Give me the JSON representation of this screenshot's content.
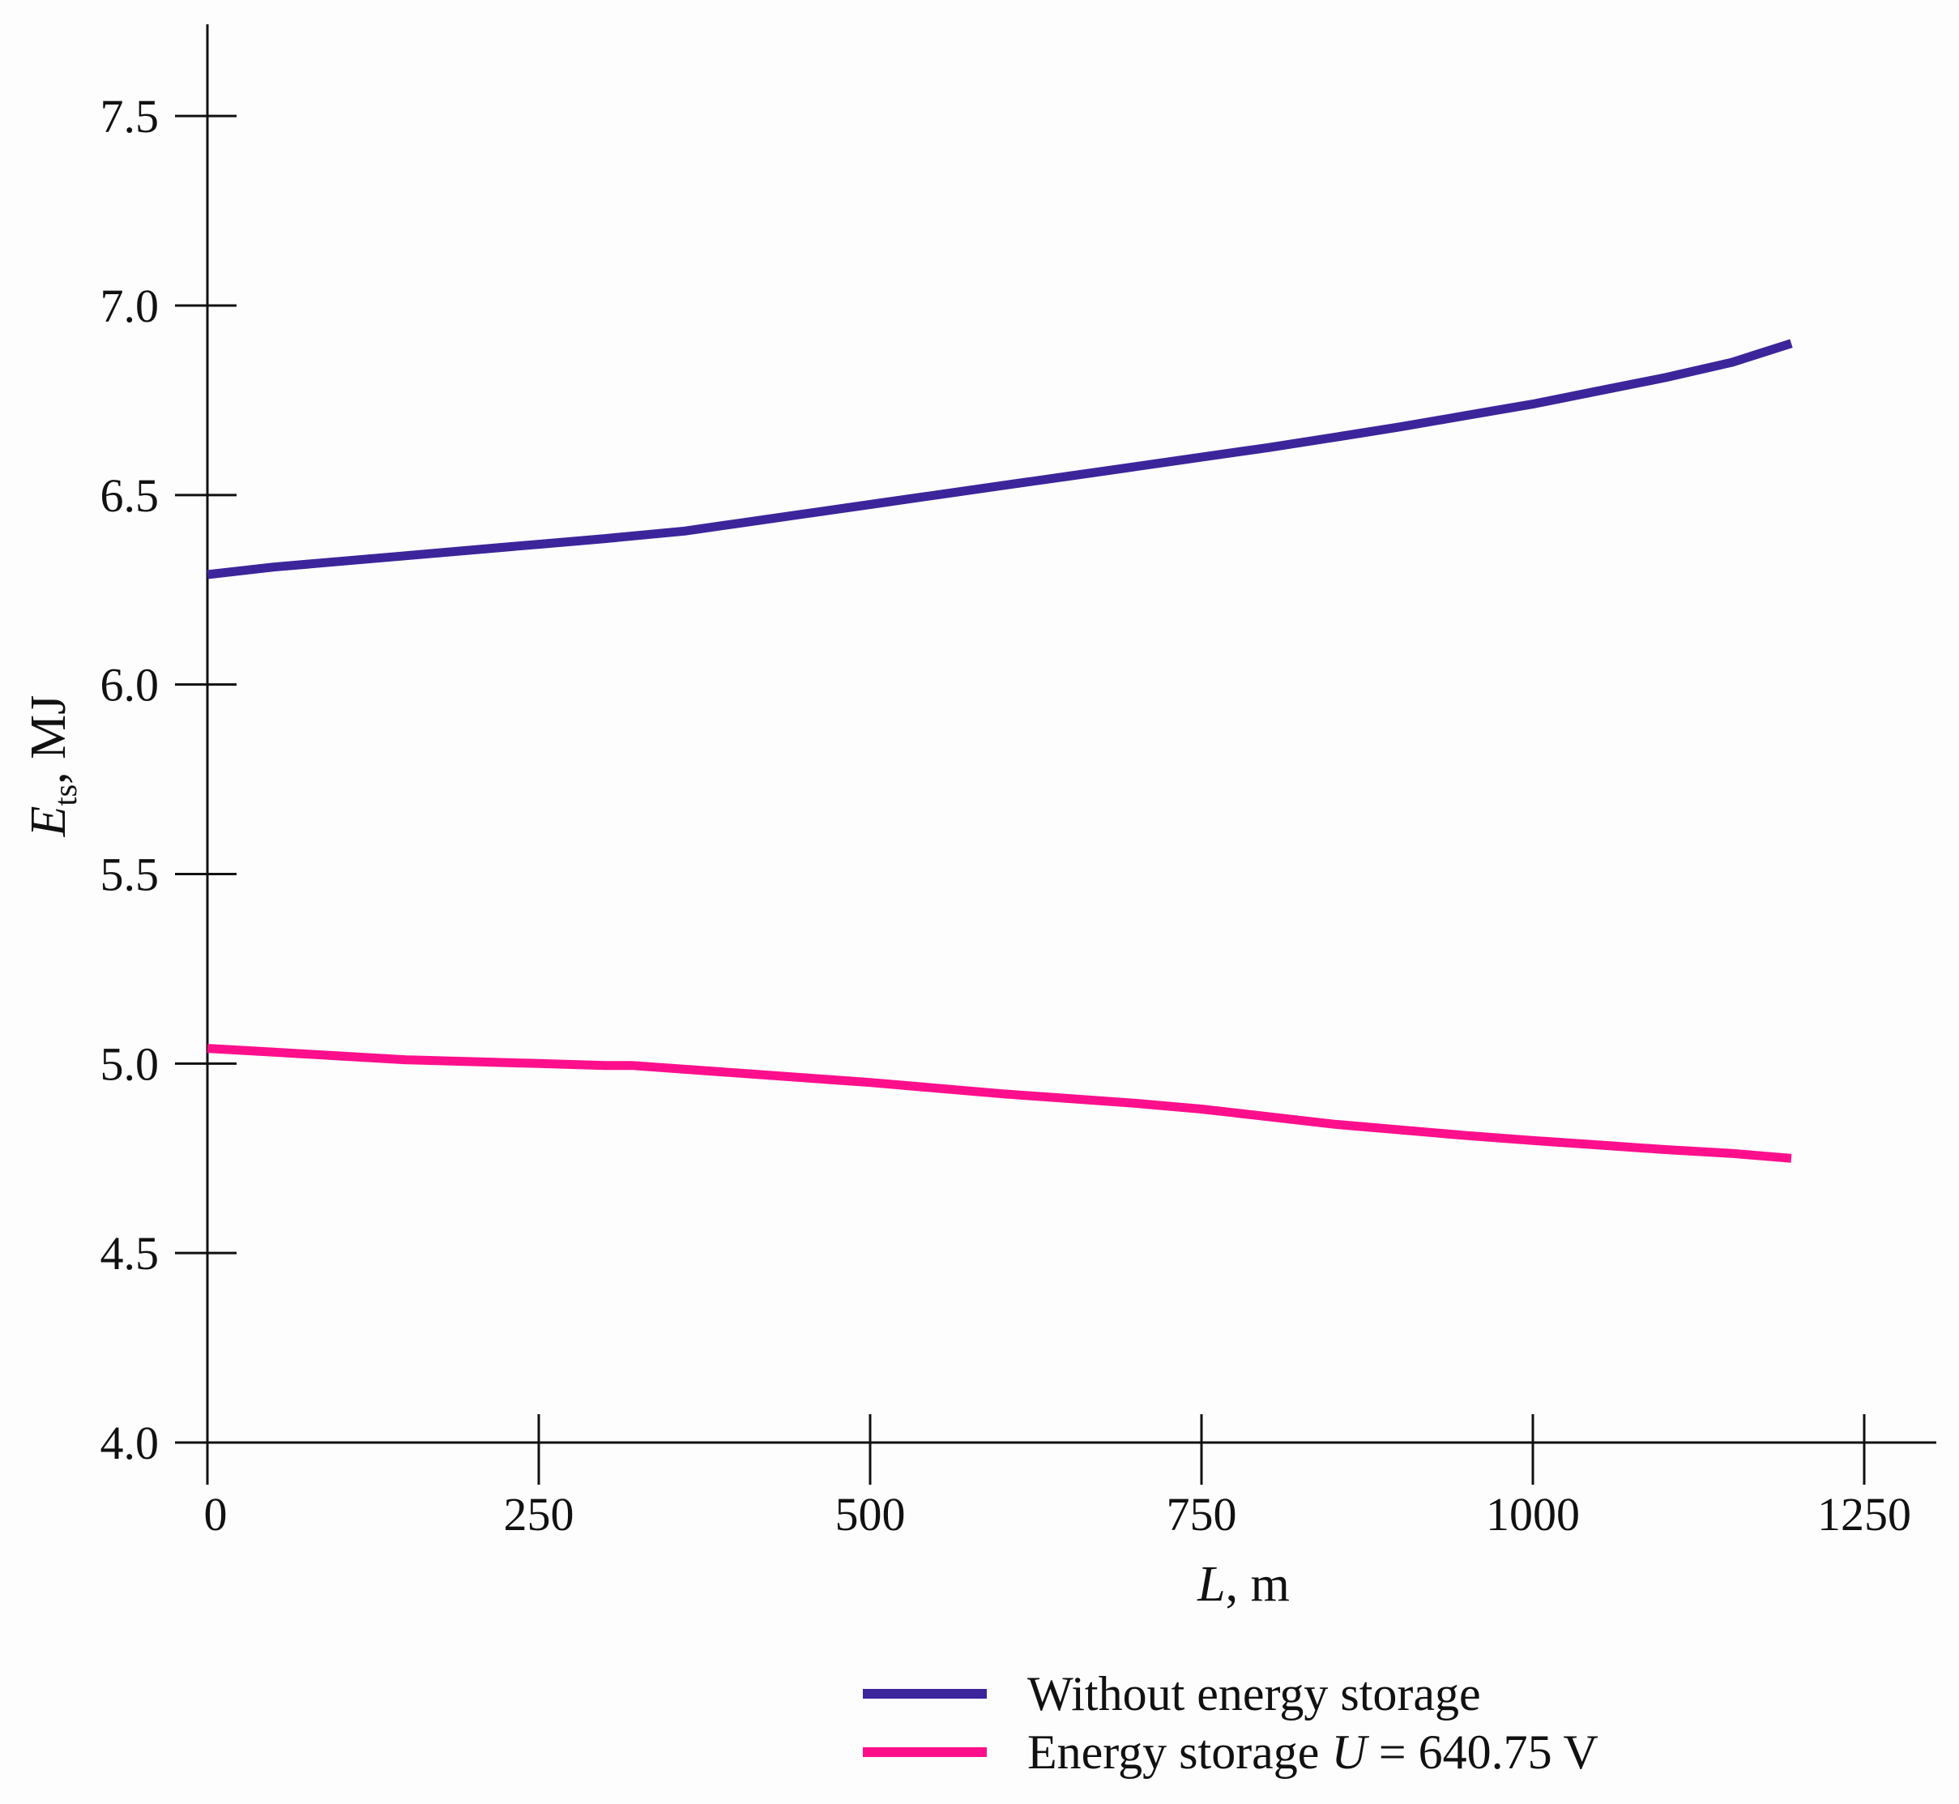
{
  "chart_data": {
    "type": "line",
    "title": "",
    "xlabel": {
      "var": "L",
      "unit": ", m"
    },
    "ylabel": {
      "var": "E",
      "sub": "ts",
      "unit": ", MJ"
    },
    "xlim": [
      0,
      1300
    ],
    "ylim": [
      4.0,
      7.7
    ],
    "xticks": [
      0,
      250,
      500,
      750,
      1000,
      1250
    ],
    "xtick_labels": [
      "0",
      "250",
      "500",
      "750",
      "1000",
      "1250"
    ],
    "yticks": [
      4.0,
      4.5,
      5.0,
      5.5,
      6.0,
      6.5,
      7.0,
      7.5
    ],
    "ytick_labels": [
      "4.0",
      "4.5",
      "5.0",
      "5.5",
      "6.0",
      "6.5",
      "7.0",
      "7.5"
    ],
    "grid": false,
    "legend_position": "bottom-right",
    "series": [
      {
        "name": "Without energy storage",
        "legend": {
          "text": "Without energy storage"
        },
        "color": "#3c259b",
        "x": [
          0,
          50,
          100,
          150,
          200,
          250,
          300,
          360,
          400,
          450,
          500,
          550,
          600,
          650,
          700,
          750,
          800,
          850,
          900,
          950,
          1000,
          1050,
          1100,
          1150,
          1195
        ],
        "y": [
          6.29,
          6.31,
          6.325,
          6.34,
          6.355,
          6.37,
          6.385,
          6.405,
          6.425,
          6.45,
          6.475,
          6.5,
          6.525,
          6.55,
          6.575,
          6.6,
          6.625,
          6.652,
          6.68,
          6.71,
          6.74,
          6.775,
          6.81,
          6.85,
          6.9
        ]
      },
      {
        "name": "Energy storage U = 640.75 V",
        "legend": {
          "pre": "Energy storage ",
          "var": "U",
          "post": " = 640.75 V"
        },
        "color": "#ff0f8c",
        "x": [
          0,
          50,
          100,
          150,
          200,
          250,
          300,
          320,
          400,
          500,
          600,
          700,
          750,
          800,
          850,
          900,
          950,
          1000,
          1050,
          1100,
          1150,
          1195
        ],
        "y": [
          5.04,
          5.03,
          5.02,
          5.01,
          5.005,
          5.0,
          4.995,
          4.995,
          4.975,
          4.95,
          4.92,
          4.895,
          4.88,
          4.86,
          4.84,
          4.825,
          4.81,
          4.797,
          4.785,
          4.773,
          4.763,
          4.75
        ]
      }
    ]
  }
}
